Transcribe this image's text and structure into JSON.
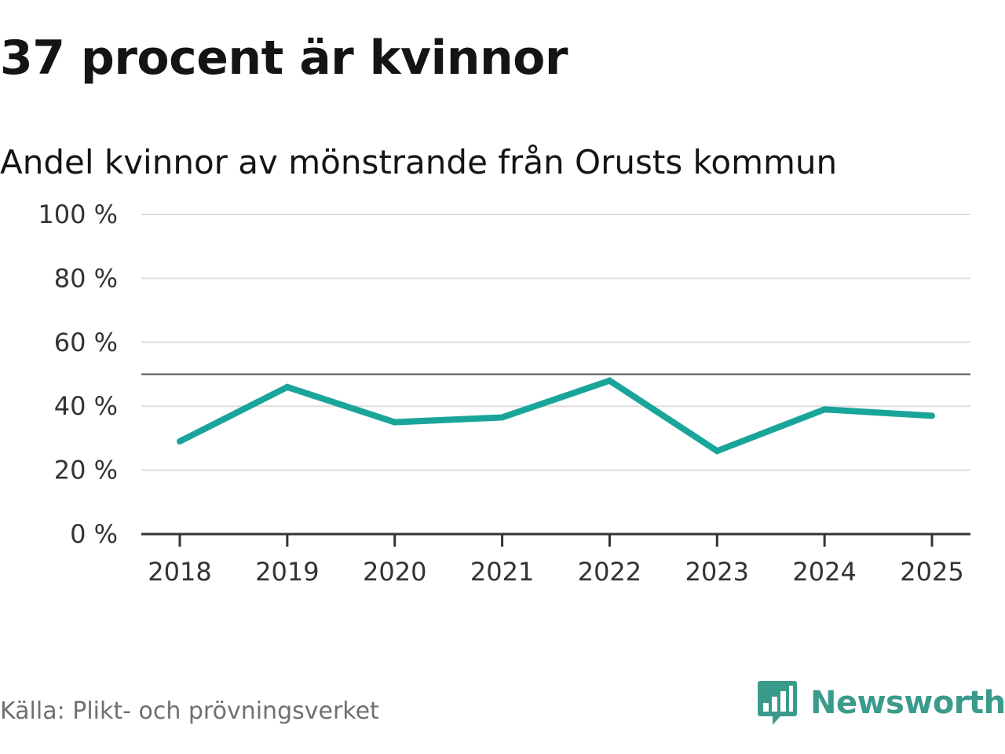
{
  "header": {
    "title": "37 procent är kvinnor",
    "subtitle": "Andel kvinnor av mönstrande från Orusts kommun"
  },
  "footer": {
    "source": "Källa: Plikt- och prövningsverket",
    "brand": "Newsworthy"
  },
  "colors": {
    "series": "#1aa59a",
    "brand": "#3a9b8c",
    "gridline": "#dddddd",
    "reference_line": "#555555",
    "axis": "#333333"
  },
  "chart_data": {
    "type": "line",
    "title": "37 procent är kvinnor",
    "subtitle": "Andel kvinnor av mönstrande från Orusts kommun",
    "xlabel": "",
    "ylabel": "",
    "categories": [
      "2018",
      "2019",
      "2020",
      "2021",
      "2022",
      "2023",
      "2024",
      "2025"
    ],
    "series": [
      {
        "name": "Andel kvinnor",
        "values": [
          29,
          46,
          35,
          36.5,
          48,
          26,
          39,
          37
        ]
      }
    ],
    "ylim": [
      0,
      100
    ],
    "yticks": [
      0,
      20,
      40,
      60,
      80,
      100
    ],
    "ytick_labels": [
      "0 %",
      "20 %",
      "40 %",
      "60 %",
      "80 %",
      "100 %"
    ],
    "reference_line": 50,
    "grid": true,
    "legend": "none"
  }
}
